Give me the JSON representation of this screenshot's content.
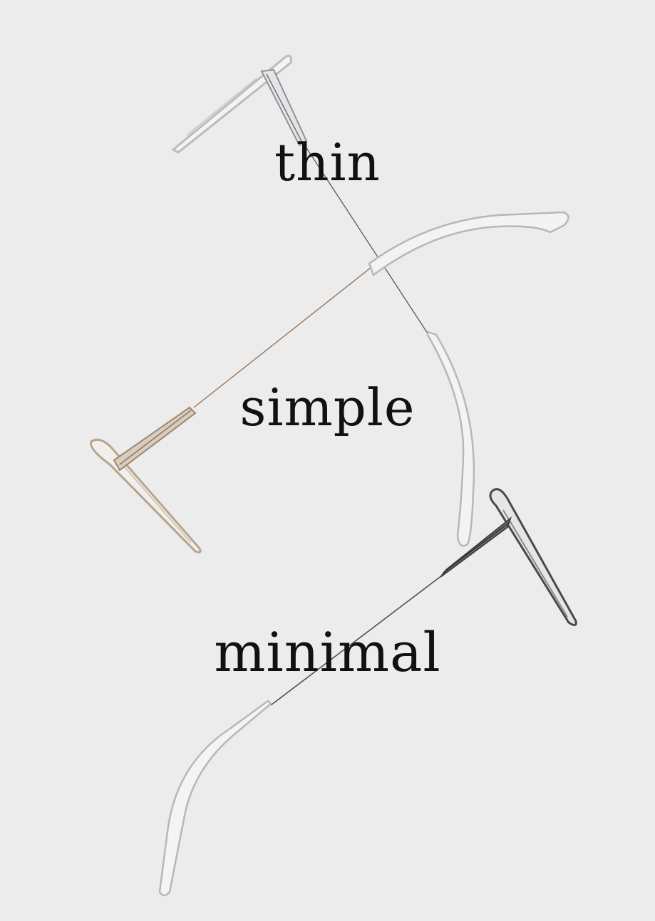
{
  "words": [
    "thin",
    "simple",
    "minimal"
  ],
  "colors": {
    "background": "#ececec",
    "text": "#111111",
    "clear_frame": "#b9bcc0",
    "gold_frame": "#b8a48c",
    "dark_frame": "#4a4a4a"
  }
}
